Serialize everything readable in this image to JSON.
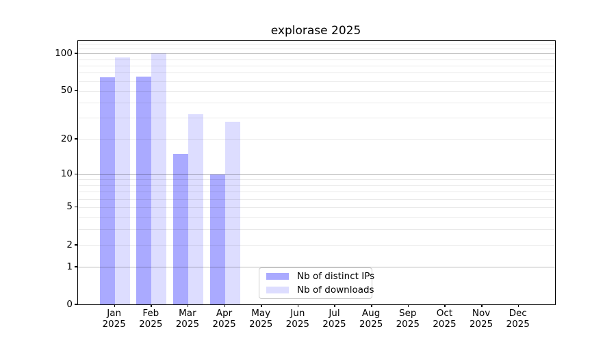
{
  "title": "explorase 2025",
  "chart_data": {
    "type": "bar",
    "title": "explorase 2025",
    "categories": [
      "Jan",
      "Feb",
      "Mar",
      "Apr",
      "May",
      "Jun",
      "Jul",
      "Aug",
      "Sep",
      "Oct",
      "Nov",
      "Dec"
    ],
    "year_label": "2025",
    "series": [
      {
        "name": "Nb of distinct IPs",
        "color": "#aaaaff",
        "values": [
          64,
          65,
          15,
          10,
          0,
          0,
          0,
          0,
          0,
          0,
          0,
          0
        ]
      },
      {
        "name": "Nb of downloads",
        "color": "#ddddff",
        "values": [
          93,
          100,
          32,
          28,
          0,
          0,
          0,
          0,
          0,
          0,
          0,
          0
        ]
      }
    ],
    "y_axis": {
      "scale": "log1p",
      "labeled_ticks": [
        0,
        1,
        2,
        5,
        10,
        20,
        50,
        100
      ],
      "major_gridlines": [
        1,
        10,
        100
      ],
      "minor_gridlines": [
        2,
        3,
        4,
        5,
        6,
        7,
        8,
        9,
        20,
        30,
        40,
        50,
        60,
        70,
        80,
        90,
        110,
        120
      ],
      "ylim": [
        0,
        126
      ]
    },
    "grid": true,
    "legend": {
      "position": "lower center",
      "entries": [
        "Nb of distinct IPs",
        "Nb of downloads"
      ]
    }
  },
  "colors": {
    "distinct_ips": "#aaaaff",
    "downloads": "#ddddff",
    "spine": "#000000",
    "grid_major": "#b7b7b7",
    "grid_minor": "#e9e9e9"
  }
}
